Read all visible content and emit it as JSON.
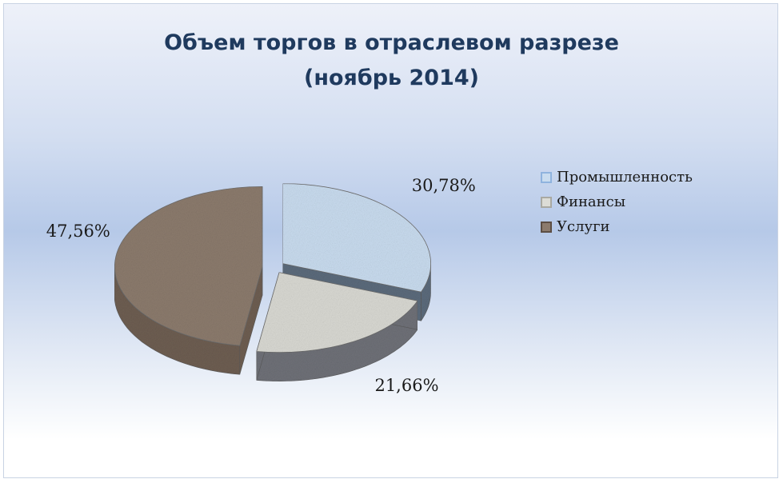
{
  "chart_data": {
    "type": "pie",
    "title": [
      "Объем торгов в отраслевом разрезе",
      "(ноябрь 2014)"
    ],
    "categories": [
      "Промышленность",
      "Финансы",
      "Услуги"
    ],
    "values": [
      30.78,
      21.66,
      47.56
    ],
    "data_labels": [
      "30,78%",
      "21,66%",
      "47,56%"
    ],
    "colors": [
      "#c9dcef",
      "#d9d9d3",
      "#8c7b6d"
    ],
    "side_colors": [
      "#5c6b7c",
      "#6f7178",
      "#6e5e52"
    ],
    "legend_position": "right",
    "style": "3d-exploded"
  }
}
